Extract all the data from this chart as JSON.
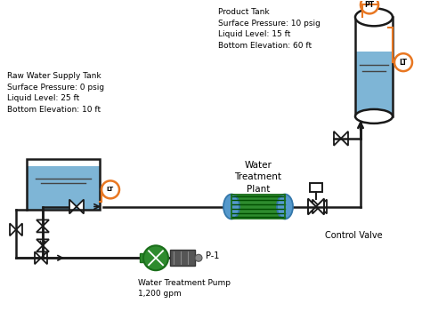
{
  "bg_color": "#ffffff",
  "line_color": "#1a1a1a",
  "pipe_color": "#1a1a1a",
  "tank_fill": "#7EB5D6",
  "tank_border": "#1a1a1a",
  "pump_green": "#2e8b2e",
  "plant_green": "#2e8b2e",
  "plant_dark": "#004d00",
  "plant_teal": "#008080",
  "orange_color": "#E87722",
  "raw_tank_text": "Raw Water Supply Tank\nSurface Pressure: 0 psig\nLiquid Level: 25 ft\nBottom Elevation: 10 ft",
  "product_tank_text": "Product Tank\nSurface Pressure: 10 psig\nLiquid Level: 15 ft\nBottom Elevation: 60 ft",
  "plant_label": "Water\nTreatment\nPlant",
  "pump_label": "Water Treatment Pump\n1,200 gpm",
  "pump_tag": "P-1",
  "control_valve_label": "Control Valve",
  "lt_label": "LT",
  "pt_label": "PT",
  "figsize": [
    4.74,
    3.59
  ],
  "dpi": 100
}
